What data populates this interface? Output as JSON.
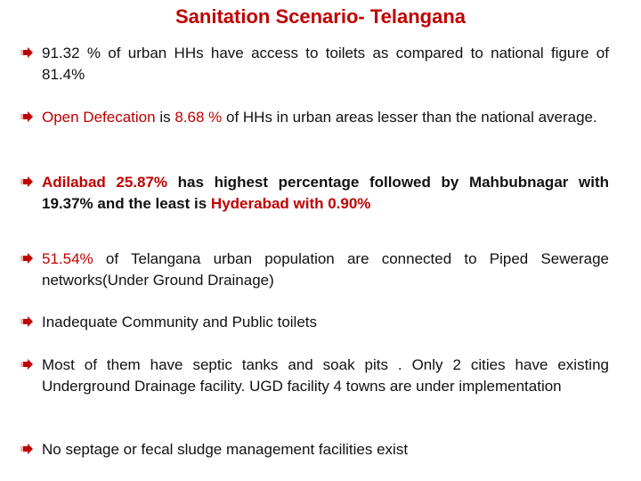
{
  "title": "Sanitation Scenario- Telangana",
  "colors": {
    "accent": "#c00000",
    "text": "#111111",
    "bullet_arrow": "#c00000"
  },
  "bullet_icon": "arrow-right-icon",
  "bullets": [
    {
      "p1": "91.32 % of urban HHs have access to toilets as compared to national figure of 81.4%"
    },
    {
      "p1": "Open Defecation",
      "p2": " is ",
      "p3": "8.68 %",
      "p4": " of HHs in urban areas lesser than the national average."
    },
    {
      "p1": "Adilabad 25.87%",
      "p2": " has highest percentage followed by Mahbubnagar with 19.37% and the least is ",
      "p3": "Hyderabad with 0.90%"
    },
    {
      "p1": "51.54%",
      "p2": " of Telangana urban population are connected to Piped Sewerage networks(Under Ground Drainage)"
    },
    {
      "p1": "Inadequate  Community and Public toilets"
    },
    {
      "p1": "Most of them have septic tanks and soak pits . Only 2 cities have existing Underground Drainage facility. UGD facility  4 towns are under implementation"
    },
    {
      "p1": "No septage or fecal sludge management facilities exist"
    }
  ]
}
